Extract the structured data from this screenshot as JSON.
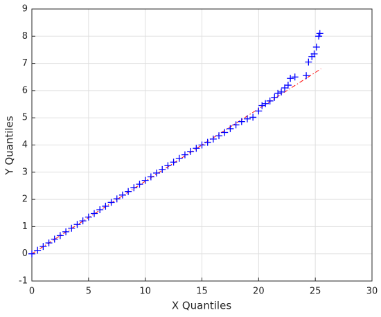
{
  "chart_data": {
    "type": "scatter",
    "xlabel": "X Quantiles",
    "ylabel": "Y Quantiles",
    "x": [
      0,
      0.5,
      1,
      1.5,
      2,
      2.5,
      3,
      3.5,
      4,
      4.5,
      5,
      5.5,
      6,
      6.5,
      7,
      7.5,
      8,
      8.5,
      9,
      9.5,
      10,
      10.5,
      11,
      11.5,
      12,
      12.5,
      13,
      13.5,
      14,
      14.5,
      15,
      15.5,
      16,
      16.5,
      17,
      17.5,
      18,
      18.5,
      19,
      19.5,
      20,
      20.3,
      20.6,
      21,
      21.4,
      21.7,
      22,
      22.3,
      22.6,
      22.8,
      23.2,
      24.2,
      24.4,
      24.7,
      24.9,
      25.1,
      25.3,
      25.4
    ],
    "y": [
      0,
      0.13,
      0.27,
      0.4,
      0.54,
      0.67,
      0.81,
      0.94,
      1.08,
      1.21,
      1.35,
      1.48,
      1.62,
      1.75,
      1.89,
      2.02,
      2.16,
      2.29,
      2.43,
      2.56,
      2.7,
      2.83,
      2.97,
      3.1,
      3.24,
      3.37,
      3.51,
      3.64,
      3.76,
      3.88,
      4.0,
      4.1,
      4.22,
      4.34,
      4.46,
      4.6,
      4.74,
      4.86,
      4.96,
      5.02,
      5.25,
      5.45,
      5.52,
      5.62,
      5.75,
      5.9,
      5.95,
      6.1,
      6.2,
      6.45,
      6.5,
      6.55,
      7.05,
      7.25,
      7.35,
      7.6,
      8.0,
      8.1
    ],
    "color": "#0000ff",
    "reference_line": {
      "x": [
        0,
        25.5
      ],
      "y": [
        0,
        6.8
      ],
      "color": "#ff0000"
    },
    "xlim": [
      0,
      30
    ],
    "ylim": [
      -1,
      9
    ],
    "xticks": [
      0,
      5,
      10,
      15,
      20,
      25,
      30
    ],
    "yticks": [
      -1,
      0,
      1,
      2,
      3,
      4,
      5,
      6,
      7,
      8,
      9
    ],
    "grid": true
  }
}
